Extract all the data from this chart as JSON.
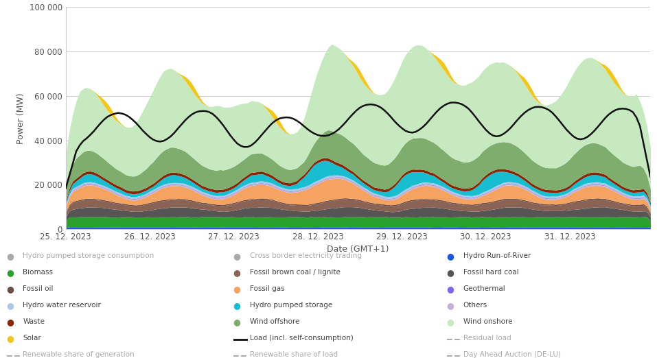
{
  "xlabel": "Date (GMT+1)",
  "ylabel": "Power (MW)",
  "ylim": [
    0,
    100000
  ],
  "yticks": [
    0,
    20000,
    40000,
    60000,
    80000,
    100000
  ],
  "ytick_labels": [
    "0",
    "20 000",
    "40 000",
    "60 000",
    "80 000",
    "100 000"
  ],
  "n_hours": 168,
  "xtick_positions": [
    0,
    24,
    48,
    72,
    96,
    120,
    144
  ],
  "xtick_labels": [
    "25. 12. 2023",
    "26. 12. 2023",
    "27. 12. 2023",
    "28. 12. 2023",
    "29. 12. 2023",
    "30. 12. 2023",
    "31. 12. 2023"
  ],
  "background_color": "#ffffff",
  "grid_color": "#cccccc",
  "load_color": "#111111",
  "load_linewidth": 1.8,
  "layers_order": [
    {
      "name": "Hydro Run-of-River",
      "color": "#1a56db"
    },
    {
      "name": "Biomass",
      "color": "#2ca02c"
    },
    {
      "name": "Fossil hard coal",
      "color": "#555555"
    },
    {
      "name": "Fossil brown coal / lignite",
      "color": "#8B6355"
    },
    {
      "name": "Fossil oil",
      "color": "#6d4c41"
    },
    {
      "name": "Fossil gas",
      "color": "#f4a460"
    },
    {
      "name": "Others",
      "color": "#c5b0d5"
    },
    {
      "name": "Geothermal",
      "color": "#7B68EE"
    },
    {
      "name": "Hydro water reservoir",
      "color": "#aec7e8"
    },
    {
      "name": "Hydro pumped storage",
      "color": "#17becf"
    },
    {
      "name": "Waste",
      "color": "#8B2500"
    },
    {
      "name": "Wind offshore",
      "color": "#7fad6e"
    },
    {
      "name": "Wind onshore",
      "color": "#c7e9c0"
    },
    {
      "name": "Solar",
      "color": "#f5c518"
    }
  ],
  "legend_col1": [
    {
      "label": "Hydro pumped storage consumption",
      "color": "#aaaaaa",
      "style": "circle",
      "greyed": true
    },
    {
      "label": "Biomass",
      "color": "#2ca02c",
      "style": "circle",
      "greyed": false
    },
    {
      "label": "Fossil oil",
      "color": "#6d4c41",
      "style": "circle",
      "greyed": false
    },
    {
      "label": "Hydro water reservoir",
      "color": "#aec7e8",
      "style": "circle",
      "greyed": false
    },
    {
      "label": "Waste",
      "color": "#8B2500",
      "style": "circle",
      "greyed": false
    },
    {
      "label": "Solar",
      "color": "#f5c518",
      "style": "circle",
      "greyed": false
    },
    {
      "label": "Renewable share of generation",
      "color": "#aaaaaa",
      "style": "dashed",
      "greyed": true
    }
  ],
  "legend_col2": [
    {
      "label": "Cross border electricity trading",
      "color": "#aaaaaa",
      "style": "circle",
      "greyed": true
    },
    {
      "label": "Fossil brown coal / lignite",
      "color": "#8B6355",
      "style": "circle",
      "greyed": false
    },
    {
      "label": "Fossil gas",
      "color": "#f4a460",
      "style": "circle",
      "greyed": false
    },
    {
      "label": "Hydro pumped storage",
      "color": "#17becf",
      "style": "circle",
      "greyed": false
    },
    {
      "label": "Wind offshore",
      "color": "#7fad6e",
      "style": "circle",
      "greyed": false
    },
    {
      "label": "Load (incl. self-consumption)",
      "color": "#111111",
      "style": "line",
      "greyed": false
    },
    {
      "label": "Renewable share of load",
      "color": "#aaaaaa",
      "style": "dashed",
      "greyed": true
    }
  ],
  "legend_col3": [
    {
      "label": "Hydro Run-of-River",
      "color": "#1a56db",
      "style": "circle",
      "greyed": false
    },
    {
      "label": "Fossil hard coal",
      "color": "#555555",
      "style": "circle",
      "greyed": false
    },
    {
      "label": "Geothermal",
      "color": "#7B68EE",
      "style": "circle",
      "greyed": false
    },
    {
      "label": "Others",
      "color": "#c5b0d5",
      "style": "circle",
      "greyed": false
    },
    {
      "label": "Wind onshore",
      "color": "#c7e9c0",
      "style": "circle",
      "greyed": false
    },
    {
      "label": "Residual load",
      "color": "#aaaaaa",
      "style": "dashed",
      "greyed": true
    },
    {
      "label": "Day Ahead Auction (DE-LU)",
      "color": "#aaaaaa",
      "style": "dashed",
      "greyed": true
    }
  ]
}
